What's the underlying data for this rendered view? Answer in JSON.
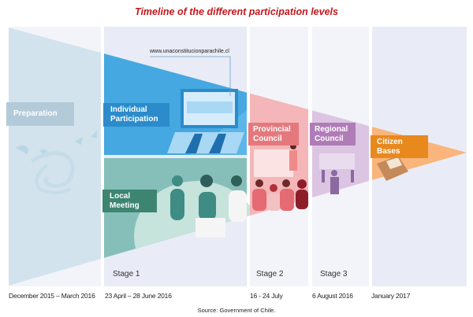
{
  "title": "Timeline of the different participation levels",
  "url": "www.unaconstitucionparachile.cl",
  "phases": [
    {
      "label": "Preparation",
      "date": "December 2015 – March 2016",
      "color": "#b3cad9"
    },
    {
      "label": "Individual Participation",
      "date": "23 April – 28 June 2016",
      "stage": "Stage 1",
      "color": "#2b8bcb"
    },
    {
      "label": "Local Meeting",
      "color": "#3d8570"
    },
    {
      "label": "Provincial Council",
      "date": "16 - 24 July",
      "stage": "Stage 2",
      "color": "#e5787d"
    },
    {
      "label": "Regional Council",
      "date": "6 August 2016",
      "stage": "Stage 3",
      "color": "#b07cb8"
    },
    {
      "label": "Citizen Bases",
      "date": "January 2017",
      "color": "#e8891e"
    }
  ],
  "source": "Source: Government of Chile."
}
